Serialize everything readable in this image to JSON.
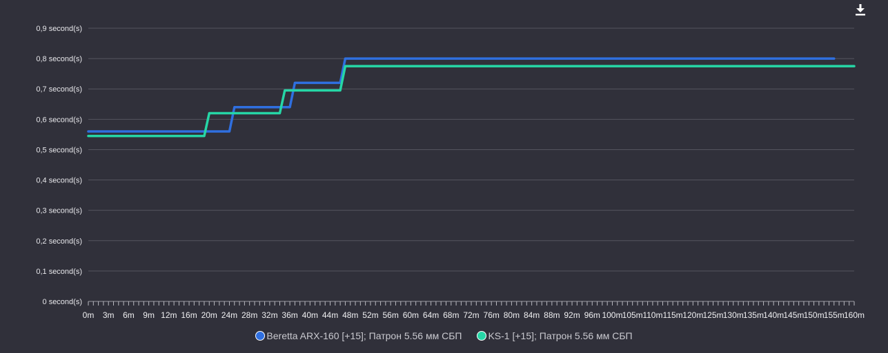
{
  "chart_data": {
    "type": "line",
    "step": true,
    "grid": true,
    "legend_position": "bottom",
    "y_tick_labels": [
      "0 second(s)",
      "0,1 second(s)",
      "0,2 second(s)",
      "0,3 second(s)",
      "0,4 second(s)",
      "0,5 second(s)",
      "0,6 second(s)",
      "0,7 second(s)",
      "0,8 second(s)",
      "0,9 second(s)"
    ],
    "y_tick_values": [
      0,
      0.1,
      0.2,
      0.3,
      0.4,
      0.5,
      0.6,
      0.7,
      0.8,
      0.9
    ],
    "ylim": [
      0,
      0.9
    ],
    "x_tick_labels": [
      "0m",
      "3m",
      "6m",
      "9m",
      "12m",
      "16m",
      "20m",
      "24m",
      "28m",
      "32m",
      "36m",
      "40m",
      "44m",
      "48m",
      "52m",
      "56m",
      "60m",
      "64m",
      "68m",
      "72m",
      "76m",
      "80m",
      "84m",
      "88m",
      "92m",
      "96m",
      "100m",
      "105m",
      "110m",
      "115m",
      "120m",
      "125m",
      "130m",
      "135m",
      "140m",
      "145m",
      "150m",
      "155m",
      "160m"
    ],
    "series": [
      {
        "name": "Beretta ARX-160 [+15]; Патрон 5.56 мм СБП",
        "color": "#2f6fe0",
        "points": [
          [
            0,
            0.56
          ],
          [
            24,
            0.56
          ],
          [
            25,
            0.64
          ],
          [
            36,
            0.64
          ],
          [
            37,
            0.72
          ],
          [
            46,
            0.72
          ],
          [
            47,
            0.8
          ],
          [
            155,
            0.8
          ]
        ]
      },
      {
        "name": "KS-1 [+15]; Патрон 5.56 мм СБП",
        "color": "#26d6a6",
        "points": [
          [
            0,
            0.545
          ],
          [
            19,
            0.545
          ],
          [
            20,
            0.62
          ],
          [
            34,
            0.62
          ],
          [
            35,
            0.695
          ],
          [
            46,
            0.695
          ],
          [
            47,
            0.775
          ],
          [
            160,
            0.775
          ]
        ]
      }
    ]
  },
  "toolbar": {
    "download_icon": "download-icon"
  }
}
